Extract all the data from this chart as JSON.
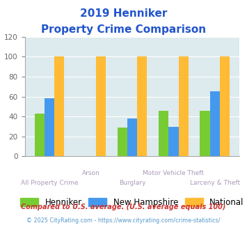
{
  "title_line1": "2019 Henniker",
  "title_line2": "Property Crime Comparison",
  "categories": [
    "All Property Crime",
    "Arson",
    "Burglary",
    "Motor Vehicle Theft",
    "Larceny & Theft"
  ],
  "henniker": [
    43,
    0,
    29,
    46,
    46
  ],
  "new_hampshire": [
    58,
    0,
    38,
    30,
    65
  ],
  "national": [
    100,
    100,
    100,
    100,
    100
  ],
  "colors": {
    "henniker": "#77cc33",
    "new_hampshire": "#4499ee",
    "national": "#ffbb33"
  },
  "ylim": [
    0,
    120
  ],
  "yticks": [
    0,
    20,
    40,
    60,
    80,
    100,
    120
  ],
  "xlabel_color": "#aa99bb",
  "title_color": "#2255cc",
  "legend_labels": [
    "Henniker",
    "New Hampshire",
    "National"
  ],
  "footnote1": "Compared to U.S. average. (U.S. average equals 100)",
  "footnote2": "© 2025 CityRating.com - https://www.cityrating.com/crime-statistics/",
  "bg_color": "#ddeaee",
  "fig_bg": "#ffffff",
  "tick_labels_top": [
    "",
    "Arson",
    "",
    "Motor Vehicle Theft",
    ""
  ],
  "tick_labels_bottom": [
    "All Property Crime",
    "",
    "Burglary",
    "",
    "Larceny & Theft"
  ]
}
